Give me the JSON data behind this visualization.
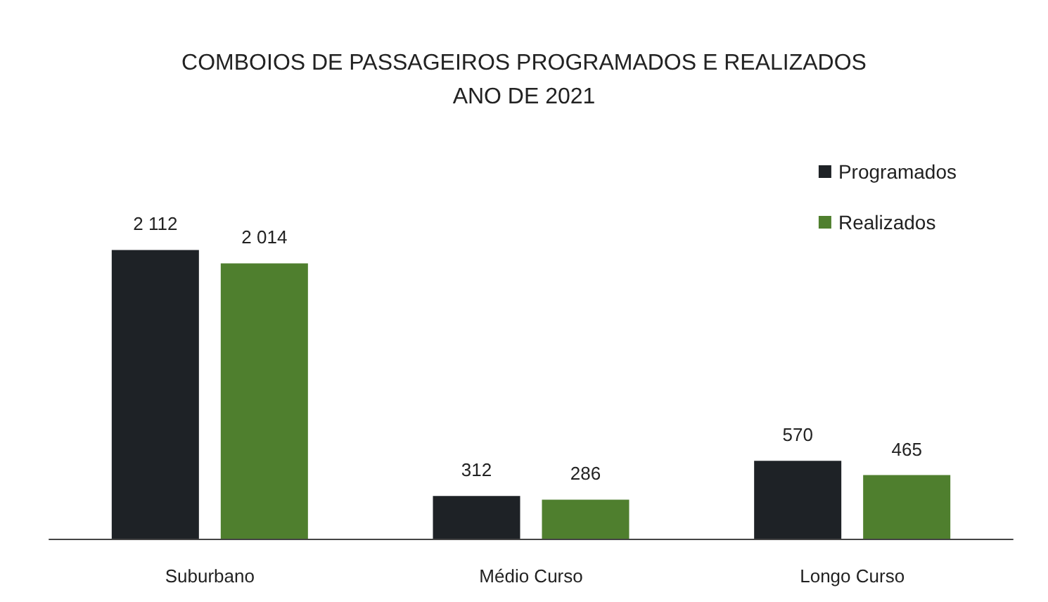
{
  "chart_data": {
    "type": "bar",
    "title": "COMBOIOS DE PASSAGEIROS PROGRAMADOS E REALIZADOS",
    "subtitle": "ANO DE 2021",
    "categories": [
      "Suburbano",
      "Médio Curso",
      "Longo Curso"
    ],
    "series": [
      {
        "name": "Programados",
        "color": "#1e2226",
        "values": [
          2112,
          312,
          570
        ],
        "value_labels": [
          "2 112",
          "312",
          "570"
        ]
      },
      {
        "name": "Realizados",
        "color": "#4f7f2e",
        "values": [
          2014,
          286,
          465
        ],
        "value_labels": [
          "2 014",
          "286",
          "465"
        ]
      }
    ],
    "legend": "top right"
  }
}
